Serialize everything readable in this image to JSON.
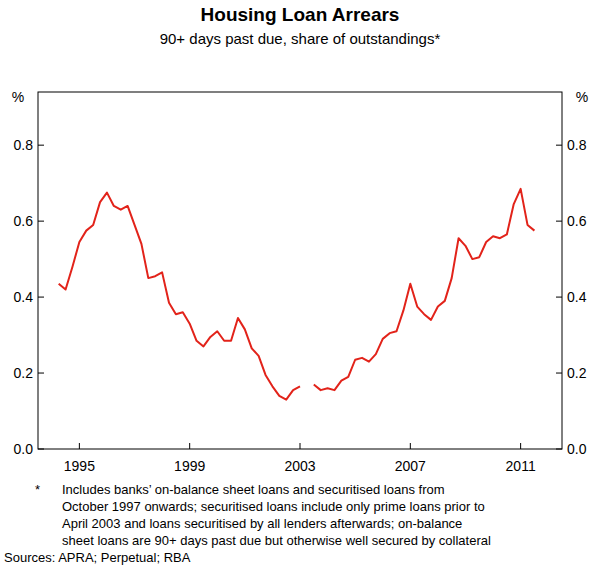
{
  "chart_data": {
    "type": "line",
    "title": "Housing Loan Arrears",
    "subtitle": "90+ days past due, share of outstandings*",
    "ylabel": "%",
    "color": "#e2231a",
    "grid": false,
    "x": [
      1994.25,
      1994.5,
      1994.75,
      1995,
      1995.25,
      1995.5,
      1995.75,
      1996,
      1996.25,
      1996.5,
      1996.75,
      1997,
      1997.25,
      1997.5,
      1997.75,
      1998,
      1998.25,
      1998.5,
      1998.75,
      1999,
      1999.25,
      1999.5,
      1999.75,
      2000,
      2000.25,
      2000.5,
      2000.75,
      2001,
      2001.25,
      2001.5,
      2001.75,
      2002,
      2002.25,
      2002.5,
      2002.75,
      2003,
      2003.25,
      2003.5,
      2003.75,
      2004,
      2004.25,
      2004.5,
      2004.75,
      2005,
      2005.25,
      2005.5,
      2005.75,
      2006,
      2006.25,
      2006.5,
      2006.75,
      2007,
      2007.25,
      2007.5,
      2007.75,
      2008,
      2008.25,
      2008.5,
      2008.75,
      2009,
      2009.25,
      2009.5,
      2009.75,
      2010,
      2010.25,
      2010.5,
      2010.75,
      2011,
      2011.25,
      2011.5
    ],
    "values": [
      0.435,
      0.42,
      0.48,
      0.545,
      0.575,
      0.59,
      0.65,
      0.675,
      0.64,
      0.63,
      0.64,
      0.59,
      0.54,
      0.45,
      0.455,
      0.465,
      0.385,
      0.355,
      0.36,
      0.33,
      0.285,
      0.27,
      0.295,
      0.31,
      0.285,
      0.285,
      0.345,
      0.315,
      0.265,
      0.245,
      0.195,
      0.165,
      0.14,
      0.13,
      0.155,
      0.165,
      null,
      0.17,
      0.155,
      0.16,
      0.155,
      0.18,
      0.19,
      0.235,
      0.24,
      0.23,
      0.25,
      0.29,
      0.305,
      0.31,
      0.365,
      0.435,
      0.375,
      0.355,
      0.34,
      0.375,
      0.39,
      0.45,
      0.555,
      0.535,
      0.5,
      0.505,
      0.545,
      0.56,
      0.555,
      0.565,
      0.645,
      0.685,
      0.59,
      0.575
    ],
    "xlim": [
      1993.5,
      2012.5
    ],
    "xticks": [
      1995,
      1999,
      2003,
      2007,
      2011
    ],
    "ylim": [
      0,
      0.94
    ],
    "yticks": [
      {
        "value": 0,
        "label": "0.0"
      },
      0.2,
      0.4,
      0.6,
      0.8
    ],
    "note_marker": "*",
    "notes": [
      "Includes banks’ on-balance sheet loans and securitised loans from",
      "October 1997 onwards; securitised loans include only prime loans prior to",
      "April 2003 and loans securitised by all lenders afterwards; on-balance",
      "sheet loans are 90+ days past due but otherwise well secured by collateral"
    ],
    "source": "Sources: APRA; Perpetual; RBA"
  }
}
